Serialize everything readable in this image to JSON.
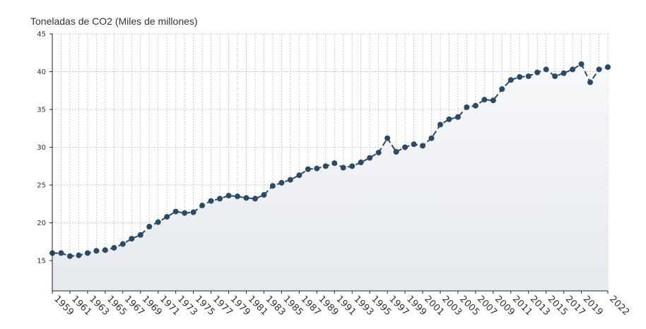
{
  "chart_data": {
    "type": "line",
    "title": "Toneladas de CO2 (Miles de millones)",
    "xlabel": "",
    "ylabel": "",
    "ylim": [
      11,
      45
    ],
    "yticks": [
      15,
      20,
      25,
      30,
      35,
      40,
      45
    ],
    "xticks": [
      1959,
      1961,
      1963,
      1965,
      1967,
      1969,
      1971,
      1973,
      1975,
      1977,
      1979,
      1981,
      1983,
      1985,
      1987,
      1989,
      1991,
      1993,
      1995,
      1997,
      1999,
      2001,
      2003,
      2005,
      2007,
      2009,
      2011,
      2013,
      2015,
      2017,
      2019,
      2022
    ],
    "x": [
      1959,
      1960,
      1961,
      1962,
      1963,
      1964,
      1965,
      1966,
      1967,
      1968,
      1969,
      1970,
      1971,
      1972,
      1973,
      1974,
      1975,
      1976,
      1977,
      1978,
      1979,
      1980,
      1981,
      1982,
      1983,
      1984,
      1985,
      1986,
      1987,
      1988,
      1989,
      1990,
      1991,
      1992,
      1993,
      1994,
      1995,
      1996,
      1997,
      1998,
      1999,
      2000,
      2001,
      2002,
      2003,
      2004,
      2005,
      2006,
      2007,
      2008,
      2009,
      2010,
      2011,
      2012,
      2013,
      2014,
      2015,
      2016,
      2017,
      2018,
      2019,
      2020,
      2021,
      2022
    ],
    "series": [
      {
        "name": "",
        "color": "#2b4a66",
        "values": [
          16.0,
          16.0,
          15.6,
          15.7,
          16.0,
          16.3,
          16.4,
          16.7,
          17.2,
          17.9,
          18.4,
          19.5,
          20.1,
          20.8,
          21.5,
          21.3,
          21.4,
          22.3,
          22.9,
          23.2,
          23.6,
          23.5,
          23.3,
          23.2,
          23.7,
          24.9,
          25.3,
          25.7,
          26.3,
          27.1,
          27.2,
          27.5,
          27.9,
          27.3,
          27.5,
          28.0,
          28.6,
          29.3,
          31.2,
          29.4,
          30.0,
          30.4,
          30.2,
          31.2,
          33.0,
          33.7,
          34.0,
          35.3,
          35.5,
          36.3,
          36.2,
          37.7,
          38.9,
          39.3,
          39.4,
          39.9,
          40.3,
          39.4,
          39.8,
          40.3,
          41.0,
          38.6,
          40.3,
          40.6
        ]
      }
    ],
    "grid": true,
    "area_fill": true
  }
}
